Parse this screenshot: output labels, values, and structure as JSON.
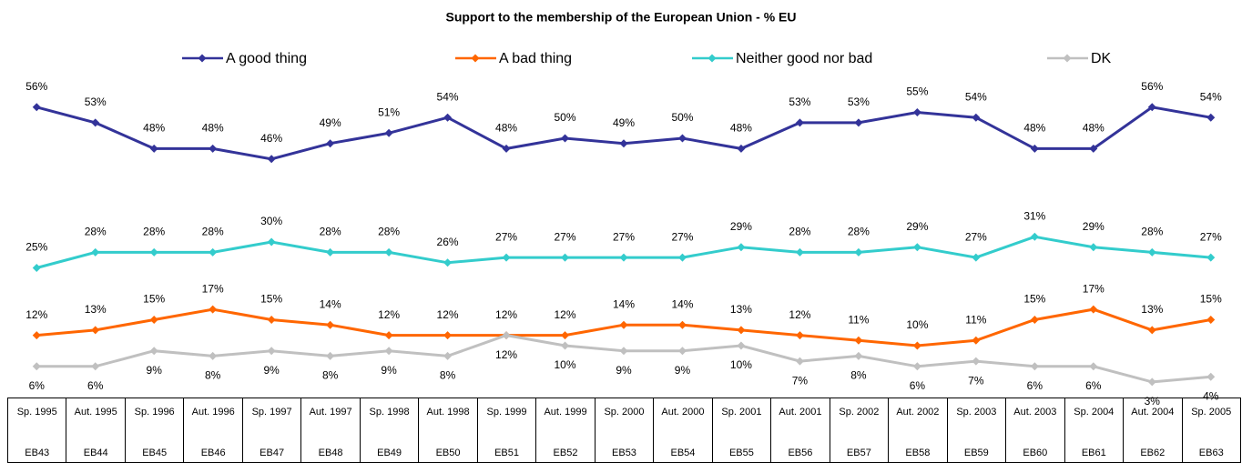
{
  "chart_data": {
    "type": "line",
    "title": "Support to the membership of the European Union - % EU",
    "categories": [
      "Sp. 1995",
      "Aut. 1995",
      "Sp. 1996",
      "Aut. 1996",
      "Sp. 1997",
      "Aut. 1997",
      "Sp. 1998",
      "Aut. 1998",
      "Sp. 1999",
      "Aut. 1999",
      "Sp. 2000",
      "Aut. 2000",
      "Sp. 2001",
      "Aut. 2001",
      "Sp. 2002",
      "Aut. 2002",
      "Sp. 2003",
      "Aut. 2003",
      "Sp. 2004",
      "Aut. 2004",
      "Sp. 2005"
    ],
    "waves": [
      "EB43",
      "EB44",
      "EB45",
      "EB46",
      "EB47",
      "EB48",
      "EB49",
      "EB50",
      "EB51",
      "EB52",
      "EB53",
      "EB54",
      "EB55",
      "EB56",
      "EB57",
      "EB58",
      "EB59",
      "EB60",
      "EB61",
      "EB62",
      "EB63"
    ],
    "ylim": [
      0,
      60
    ],
    "series": [
      {
        "name": "A good thing",
        "color": "#333399",
        "values": [
          56,
          53,
          48,
          48,
          46,
          49,
          51,
          54,
          48,
          50,
          49,
          50,
          48,
          53,
          53,
          55,
          54,
          48,
          48,
          56,
          54
        ],
        "value_labels": [
          "56%",
          "53%",
          "48%",
          "48%",
          "46%",
          "49%",
          "51%",
          "54%",
          "48%",
          "50%",
          "49%",
          "50%",
          "48%",
          "53%",
          "53%",
          "55%",
          "54%",
          "48%",
          "48%",
          "56%",
          "54%"
        ]
      },
      {
        "name": "A bad thing",
        "color": "#ff6600",
        "values": [
          12,
          13,
          15,
          17,
          15,
          14,
          12,
          12,
          12,
          12,
          14,
          14,
          13,
          12,
          11,
          10,
          11,
          15,
          17,
          13,
          15
        ],
        "value_labels": [
          "12%",
          "13%",
          "15%",
          "17%",
          "15%",
          "14%",
          "12%",
          "12%",
          "12%",
          "12%",
          "14%",
          "14%",
          "13%",
          "12%",
          "11%",
          "10%",
          "11%",
          "15%",
          "17%",
          "13%",
          "15%"
        ]
      },
      {
        "name": "Neither good nor bad",
        "color": "#33cccc",
        "values": [
          25,
          28,
          28,
          28,
          30,
          28,
          28,
          26,
          27,
          27,
          27,
          27,
          29,
          28,
          28,
          29,
          27,
          31,
          29,
          28,
          27
        ],
        "value_labels": [
          "25%",
          "28%",
          "28%",
          "28%",
          "30%",
          "28%",
          "28%",
          "26%",
          "27%",
          "27%",
          "27%",
          "27%",
          "29%",
          "28%",
          "28%",
          "29%",
          "27%",
          "31%",
          "29%",
          "28%",
          "27%"
        ]
      },
      {
        "name": "DK",
        "color": "#c0c0c0",
        "values": [
          6,
          6,
          9,
          8,
          9,
          8,
          9,
          8,
          12,
          10,
          9,
          9,
          10,
          7,
          8,
          6,
          7,
          6,
          6,
          3,
          4
        ],
        "value_labels": [
          "6%",
          "6%",
          "9%",
          "8%",
          "9%",
          "8%",
          "9%",
          "8%",
          "12%",
          "10%",
          "9%",
          "9%",
          "10%",
          "7%",
          "8%",
          "6%",
          "7%",
          "6%",
          "6%",
          "3%",
          "4%"
        ]
      }
    ]
  }
}
